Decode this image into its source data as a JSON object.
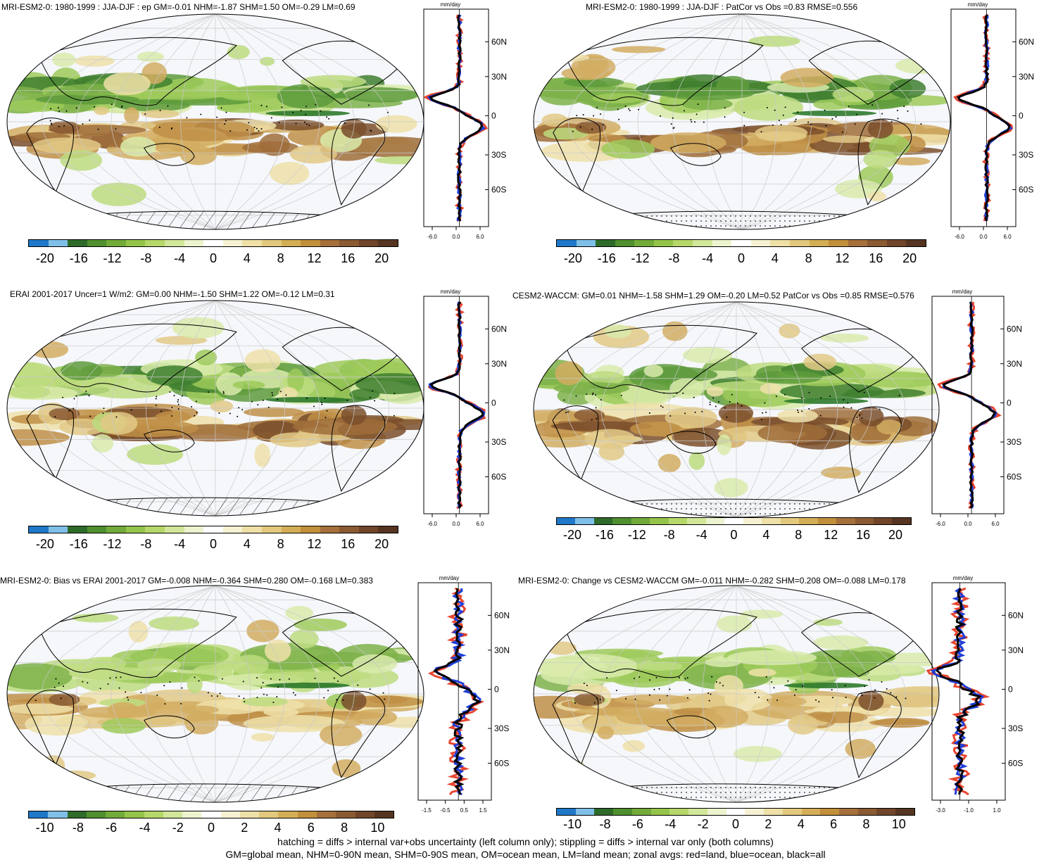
{
  "panels": [
    {
      "title": "MRI-ESM2-0: 1980-1999 : JJA-DJF : ep GM=-0.01 NHM=-1.87 SHM=1.50 OM=-0.29 LM=0.69",
      "legend_ticks": [
        "-20",
        "-16",
        "-12",
        "-8",
        "-4",
        "0",
        "4",
        "8",
        "12",
        "16",
        "20"
      ],
      "zonal_ticks": [
        "-6.0",
        "0.0",
        "6.0"
      ],
      "units": "mm/day",
      "bottom": "hatch"
    },
    {
      "title": "MRI-ESM2-0: 1980-1999 : JJA-DJF : PatCor vs Obs =0.83 RMSE=0.556",
      "legend_ticks": [
        "-20",
        "-16",
        "-12",
        "-8",
        "-4",
        "0",
        "4",
        "8",
        "12",
        "16",
        "20"
      ],
      "zonal_ticks": [
        "-6.0",
        "0.0",
        "6.0"
      ],
      "units": "mm/day",
      "bottom": "stipple"
    },
    {
      "title": "ERAI 2001-2017 Uncer=1 W/m2: GM=0.00 NHM=-1.50 SHM=1.22 OM=-0.12 LM=0.31",
      "legend_ticks": [
        "-20",
        "-16",
        "-12",
        "-8",
        "-4",
        "0",
        "4",
        "8",
        "12",
        "16",
        "20"
      ],
      "zonal_ticks": [
        "-6.0",
        "0.0",
        "6.0"
      ],
      "units": "mm/day",
      "bottom": "hatch"
    },
    {
      "title": "CESM2-WACCM: GM=0.01 NHM=-1.58 SHM=1.29 OM=-0.20 LM=0.52 PatCor vs Obs =0.85 RMSE=0.576",
      "legend_ticks": [
        "-20",
        "-16",
        "-12",
        "-8",
        "-4",
        "0",
        "4",
        "8",
        "12",
        "16",
        "20"
      ],
      "zonal_ticks": [
        "-6.0",
        "0.0",
        "6.0"
      ],
      "units": "mm/day",
      "bottom": "stipple"
    },
    {
      "title": "MRI-ESM2-0: Bias vs ERAI 2001-2017 GM=-0.008 NHM=-0.364 SHM=0.280 OM=-0.168 LM=0.383",
      "legend_ticks": [
        "-10",
        "-8",
        "-6",
        "-4",
        "-2",
        "0",
        "2",
        "4",
        "6",
        "8",
        "10"
      ],
      "zonal_ticks": [
        "-1.5",
        "-0.5",
        "0.5",
        "1.5"
      ],
      "units": "mm/day",
      "bottom": "hatch"
    },
    {
      "title": "MRI-ESM2-0: Change vs CESM2-WACCM GM=-0.011 NHM=-0.282 SHM=0.208 OM=-0.088 LM=0.178",
      "legend_ticks": [
        "-10",
        "-8",
        "-6",
        "-4",
        "-2",
        "0",
        "2",
        "4",
        "6",
        "8",
        "10"
      ],
      "zonal_ticks": [
        "-3.0",
        "-1.0",
        "1.0"
      ],
      "units": "mm/day",
      "bottom": "stipple"
    }
  ],
  "lat_labels": [
    "60N",
    "30N",
    "0",
    "30S",
    "60S"
  ],
  "colors": {
    "palette": [
      "#1f78c8",
      "#7fbfe8",
      "#2e6b2a",
      "#4f8f2f",
      "#72ab3a",
      "#95c44a",
      "#b6d86a",
      "#d2e79a",
      "#ecf3cf",
      "#ffffff",
      "#f6f1d2",
      "#eee0a6",
      "#e3c97d",
      "#d4ae56",
      "#c28f3a",
      "#a5703b",
      "#8a5a33",
      "#70452a",
      "#553421"
    ],
    "land_line": "#e8452f",
    "ocean_line": "#1f3fd8",
    "all_line": "#000000",
    "ocean_bg": "#f5f7fb",
    "grid": "#c9c9c9"
  },
  "footer": [
    "hatching = diffs > internal var+obs uncertainty (left column only); stippling = diffs > internal var only (both columns)",
    "GM=global mean, NHM=0-90N mean, SHM=0-90S mean, OM=ocean mean, LM=land mean; zonal avgs: red=land, blue=ocean, black=all"
  ]
}
